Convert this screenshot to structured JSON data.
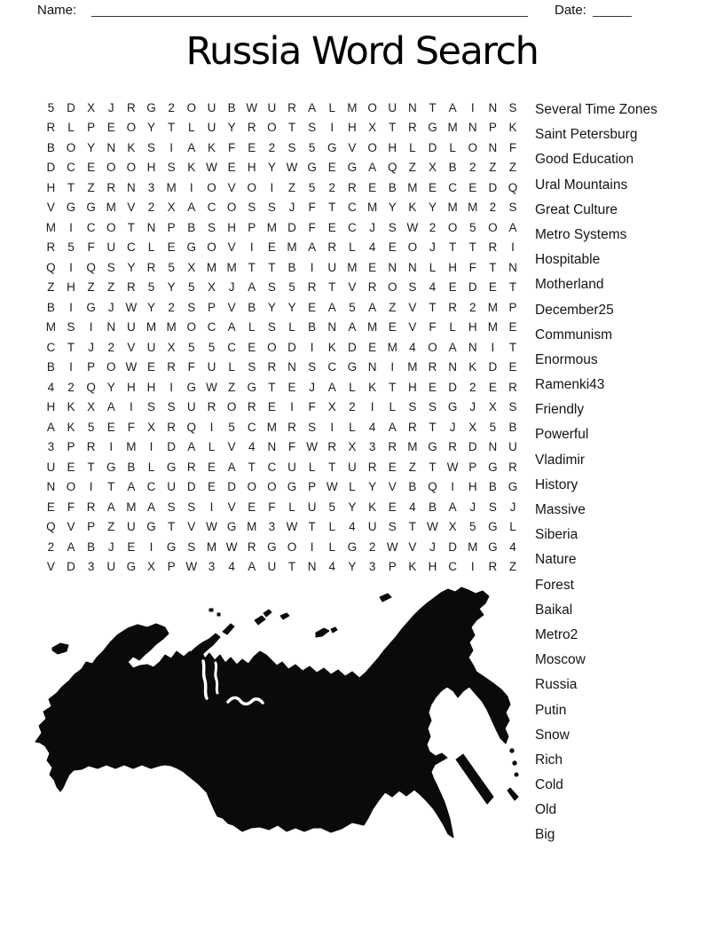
{
  "header": {
    "name_label": "Name:",
    "date_label": "Date:"
  },
  "title": "Russia Word Search",
  "grid": {
    "columns": 24,
    "rows": [
      "5DXJRG2OUBWURALMOUNTAINS",
      "RLPEOYTLUYROTSIHXTRGMNPK",
      "BOYNKSIAKFE2S5GVOHLDLONF",
      "DCEOOHSKWEHYWGEGAQZXB2ZZ",
      "HTZRN3MIOVOIZ52REBMECEDQ",
      "VGGMV2XACOSSJFTCMYKYMM2S",
      "MICOTNPBSHPMDFECJSW2O5OA",
      "R5FUCLEGOVIEMARL4EOJTTRI",
      "QIQSYR5XMMTTBIUMENNLHFTN",
      "ZHZZR5Y5XJAS5RTVROS4EDET",
      "BIGJWY2SPVBYYEA5AZVTR2MP",
      "MSINUMMOCALSLBNAMEVFLHME",
      "CTJ2VUX55CEODIKDEM4OANIT",
      "BIPOWERFULSRNSCGNIMRNKDE",
      "42QYHHIGWZGTEJALKTHED2ER",
      "HKXAISSUROREIFX2ILSSGJXS",
      "AK5EFXRQI5CMRSIL4ARTJX5B",
      "3PRIMIDALV4NFWRX3RMGRDNU",
      "UETGBLGREATCULTUREZTWPGR",
      "NOITACUDEDOOGPWLYVBQIHBG",
      "EFRAMASSIVEFLU5YKE4BAJSJ",
      "QVPZUGTVWGM3WTL4USTWX5GL",
      "2ABJEIGSMWRGOILG2WVJDMG4",
      "VD3UGXPW34AUTN4Y3PKHCIRZ"
    ]
  },
  "word_list": {
    "words": [
      "Several Time Zones",
      "Saint Petersburg",
      "Good Education",
      "Ural Mountains",
      "Great Culture",
      "Metro Systems",
      "Hospitable",
      "Motherland",
      "December25",
      "Communism",
      "Enormous",
      "Ramenki43",
      "Friendly",
      "Powerful",
      "Vladimir",
      "History",
      "Massive",
      "Siberia",
      "Nature",
      "Forest",
      "Baikal",
      "Metro2",
      "Moscow",
      "Russia",
      "Putin",
      "Snow",
      "Rich",
      "Cold",
      "Old",
      "Big"
    ]
  },
  "colors": {
    "ink": "#000000",
    "background": "#ffffff"
  }
}
